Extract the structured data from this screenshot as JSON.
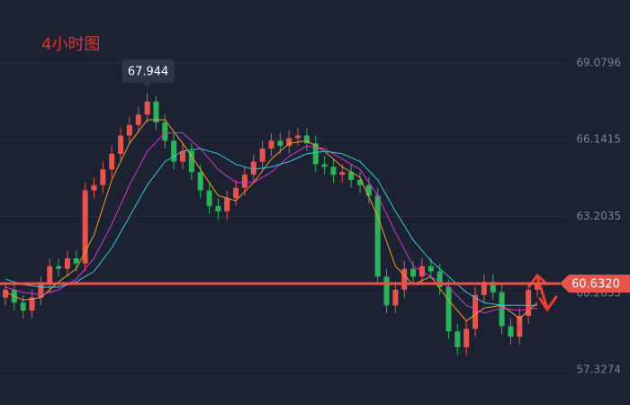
{
  "chart_data": {
    "type": "candlestick",
    "title": "4小时图",
    "ylim": [
      55.987,
      71.485
    ],
    "yticks": [
      69.0796,
      66.1415,
      63.2035,
      60.2655,
      57.3274
    ],
    "up_color": "#e8544b",
    "down_color": "#2bb35a",
    "open": [
      60.1,
      60.4,
      59.9,
      59.6,
      60.1,
      60.6,
      61.3,
      61.2,
      61.6,
      61.4,
      64.2,
      64.4,
      65.0,
      65.6,
      66.3,
      66.7,
      67.1,
      67.6,
      66.8,
      66.1,
      65.3,
      65.7,
      64.9,
      64.2,
      63.6,
      63.4,
      63.9,
      64.3,
      64.8,
      65.3,
      65.8,
      66.1,
      65.9,
      66.2,
      66.3,
      66.0,
      65.2,
      65.1,
      64.8,
      64.9,
      64.6,
      64.4,
      64.0,
      60.9,
      59.8,
      60.4,
      61.2,
      60.9,
      61.3,
      61.1,
      60.5,
      58.8,
      58.2,
      58.9,
      60.2,
      60.7,
      60.3,
      59.0,
      58.6,
      59.4,
      60.4
    ],
    "close": [
      60.4,
      59.9,
      59.6,
      60.1,
      60.6,
      61.3,
      61.2,
      61.6,
      61.4,
      64.2,
      64.4,
      65.0,
      65.6,
      66.3,
      66.7,
      67.1,
      67.6,
      66.8,
      66.1,
      65.3,
      65.7,
      64.9,
      64.2,
      63.6,
      63.4,
      63.9,
      64.3,
      64.8,
      65.3,
      65.8,
      66.1,
      65.9,
      66.2,
      66.3,
      66.0,
      65.2,
      65.1,
      64.8,
      64.9,
      64.6,
      64.4,
      64.0,
      60.9,
      59.8,
      60.4,
      61.2,
      60.9,
      61.3,
      61.1,
      60.5,
      58.8,
      58.2,
      58.9,
      60.2,
      60.7,
      60.3,
      59.0,
      58.6,
      59.4,
      60.4,
      60.63
    ],
    "high": [
      60.7,
      60.7,
      60.2,
      60.4,
      60.9,
      61.6,
      61.6,
      61.9,
      61.9,
      64.5,
      64.7,
      65.3,
      65.9,
      66.6,
      67.0,
      67.4,
      67.944,
      67.8,
      67.1,
      66.4,
      66.0,
      66.0,
      65.2,
      64.5,
      63.9,
      64.2,
      64.6,
      65.1,
      65.6,
      66.1,
      66.4,
      66.4,
      66.5,
      66.6,
      66.6,
      66.3,
      65.5,
      65.4,
      65.2,
      65.2,
      64.9,
      64.7,
      64.3,
      61.2,
      60.7,
      61.5,
      61.5,
      61.6,
      61.6,
      61.4,
      60.8,
      59.1,
      59.2,
      60.5,
      61.0,
      61.0,
      60.6,
      59.3,
      59.7,
      60.7,
      60.9
    ],
    "low": [
      59.8,
      59.6,
      59.3,
      59.3,
      59.8,
      60.3,
      60.9,
      60.9,
      61.1,
      61.1,
      63.9,
      64.1,
      64.7,
      65.3,
      66.0,
      66.4,
      66.8,
      66.5,
      65.8,
      65.0,
      65.0,
      64.6,
      63.9,
      63.3,
      63.1,
      63.1,
      63.6,
      64.0,
      64.5,
      65.0,
      65.5,
      65.6,
      65.6,
      65.9,
      65.7,
      64.9,
      64.8,
      64.5,
      64.5,
      64.3,
      64.1,
      63.7,
      60.6,
      59.5,
      59.5,
      60.1,
      60.6,
      60.6,
      60.8,
      60.2,
      58.5,
      57.9,
      57.9,
      58.6,
      59.9,
      60.0,
      58.7,
      58.3,
      58.3,
      59.1,
      60.1
    ],
    "peak_label": 67.944,
    "current_price": {
      "value": 60.632,
      "label": "60.6320"
    },
    "ma_x": [
      0,
      2,
      4,
      6,
      8,
      10,
      12,
      14,
      16,
      18,
      20,
      22,
      24,
      26,
      28,
      30,
      32,
      34,
      36,
      38,
      40,
      42,
      44,
      46,
      48,
      50,
      52,
      54,
      56,
      58,
      60
    ],
    "series": [
      {
        "color": "#f39a2c",
        "values": [
          60.3,
          60.0,
          60.1,
          60.7,
          61.2,
          62.5,
          64.6,
          66.0,
          66.9,
          66.9,
          66.0,
          65.0,
          64.0,
          63.8,
          64.5,
          65.4,
          66.0,
          66.1,
          65.7,
          65.1,
          64.7,
          63.2,
          61.3,
          60.6,
          60.9,
          60.0,
          59.2,
          59.7,
          59.8,
          59.3,
          59.9
        ]
      },
      {
        "color": "#d633d6",
        "values": [
          60.5,
          60.3,
          60.2,
          60.4,
          60.8,
          61.6,
          62.9,
          64.4,
          65.7,
          66.4,
          66.4,
          65.8,
          65.0,
          64.5,
          64.5,
          64.9,
          65.5,
          65.9,
          65.8,
          65.4,
          65.0,
          64.0,
          62.6,
          61.3,
          60.9,
          60.5,
          59.8,
          59.5,
          59.7,
          59.6,
          59.7
        ]
      },
      {
        "color": "#35c6d8",
        "values": [
          60.8,
          60.6,
          60.5,
          60.5,
          60.7,
          61.1,
          62.0,
          63.2,
          64.4,
          65.3,
          65.7,
          65.8,
          65.6,
          65.2,
          65.0,
          65.1,
          65.3,
          65.6,
          65.7,
          65.6,
          65.3,
          64.6,
          63.4,
          62.3,
          61.5,
          60.9,
          60.3,
          59.9,
          59.8,
          59.8,
          59.8
        ]
      }
    ]
  }
}
